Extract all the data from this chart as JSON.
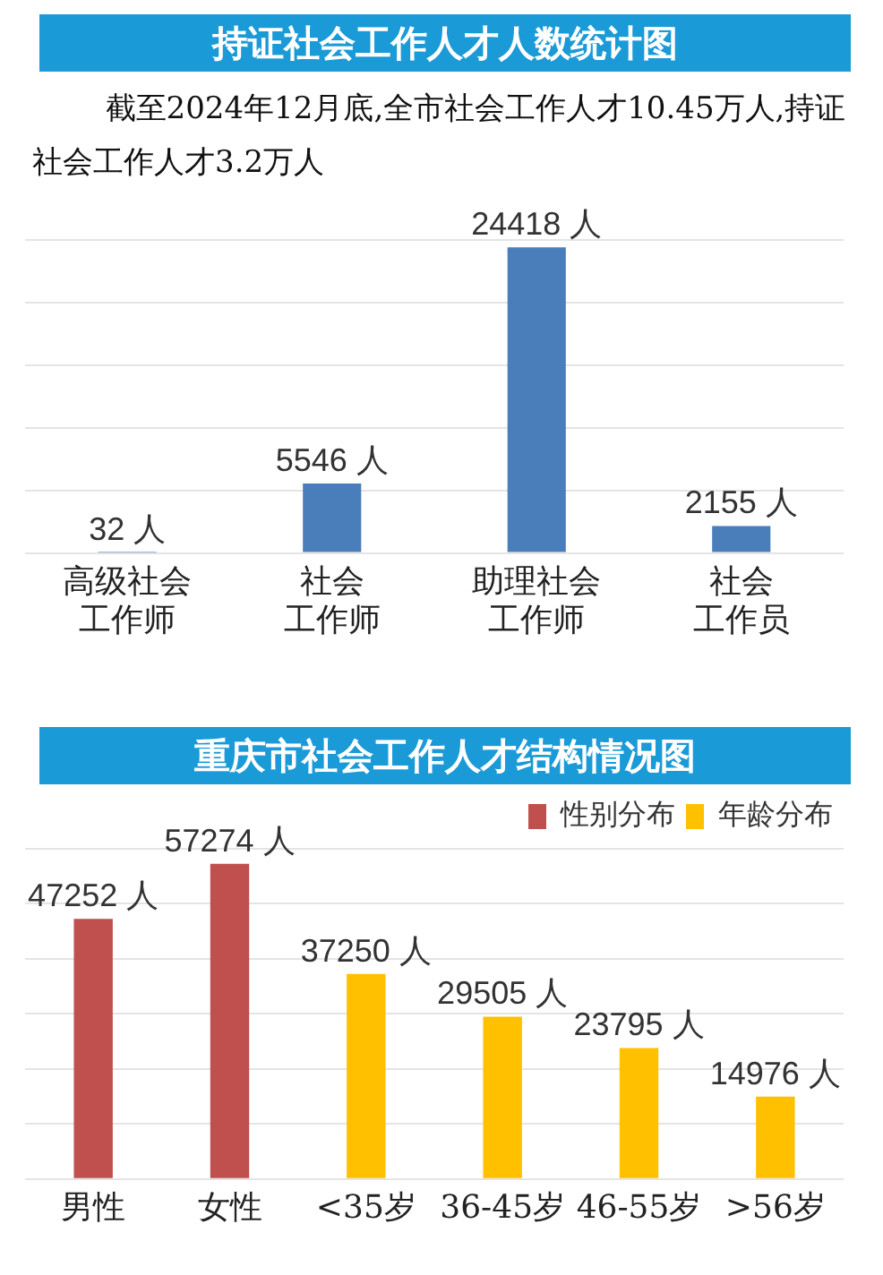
{
  "chart_data": [
    {
      "type": "bar",
      "title": "持证社会工作人才人数统计图",
      "subtitle": "截至2024年12月底,全市社会工作人才10.45万人,持证社会工作人才3.2万人",
      "categories": [
        "高级社会工作师",
        "社会工作师",
        "助理社会工作师",
        "社会工作员"
      ],
      "values": [
        32,
        5546,
        24418,
        2155
      ],
      "color": "#4a7ebb",
      "value_labels": [
        "32 人",
        "5546 人",
        "24418 人",
        "2155 人"
      ],
      "ylim": [
        0,
        25000
      ],
      "yticks": [
        {
          "value": 0,
          "label": null
        },
        {
          "value": 5000,
          "label": null
        },
        {
          "value": 10000,
          "label": null
        },
        {
          "value": 15000,
          "label": null
        },
        {
          "value": 20000,
          "label": null
        },
        {
          "value": 25000,
          "label": null
        }
      ],
      "grid": "y",
      "tick_labels": "x",
      "legend": false
    },
    {
      "type": "bar",
      "title": "重庆市社会工作人才结构情况图",
      "categories": [
        "男性",
        "女性",
        "<35岁",
        "36-45岁",
        "46-55岁",
        ">56岁"
      ],
      "series": [
        {
          "name": "性别分布",
          "color": "#c0504d",
          "values": [
            47252,
            57274,
            null,
            null,
            null,
            null
          ],
          "value_labels": [
            "47252 人",
            "57274 人",
            null,
            null,
            null,
            null
          ]
        },
        {
          "name": "年龄分布",
          "color": "#ffc000",
          "values": [
            null,
            null,
            37250,
            29505,
            23795,
            14976
          ],
          "value_labels": [
            null,
            null,
            "37250 人",
            "29505 人",
            "23795 人",
            "14976 人"
          ]
        }
      ],
      "ylim": [
        0,
        60000
      ],
      "yticks": [
        {
          "value": 0,
          "label": null
        },
        {
          "value": 10000,
          "label": null
        },
        {
          "value": 20000,
          "label": null
        },
        {
          "value": 30000,
          "label": null
        },
        {
          "value": 40000,
          "label": null
        },
        {
          "value": 50000,
          "label": null
        },
        {
          "value": 60000,
          "label": null
        }
      ],
      "grid": "y",
      "tick_labels": "x",
      "legend": "top right"
    }
  ]
}
